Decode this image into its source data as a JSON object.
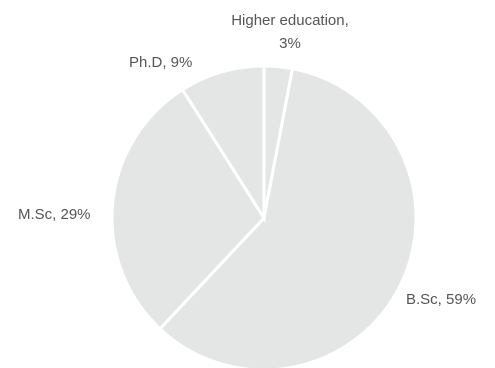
{
  "chart_data": {
    "type": "pie",
    "slices": [
      {
        "label": "Higher education",
        "value": 3,
        "label_lines": [
          "Higher education,",
          "3%"
        ]
      },
      {
        "label": "B.Sc",
        "value": 59,
        "label_lines": [
          "B.Sc, 59%"
        ]
      },
      {
        "label": "M.Sc",
        "value": 29,
        "label_lines": [
          "M.Sc, 29%"
        ]
      },
      {
        "label": "Ph.D",
        "value": 9,
        "label_lines": [
          "Ph.D, 9%"
        ]
      }
    ],
    "colors": {
      "slice": "#e4e6e6",
      "separator": "#ffffff",
      "label": "#555555"
    },
    "legend": "none",
    "start_angle": "12 o'clock",
    "direction": "clockwise"
  }
}
